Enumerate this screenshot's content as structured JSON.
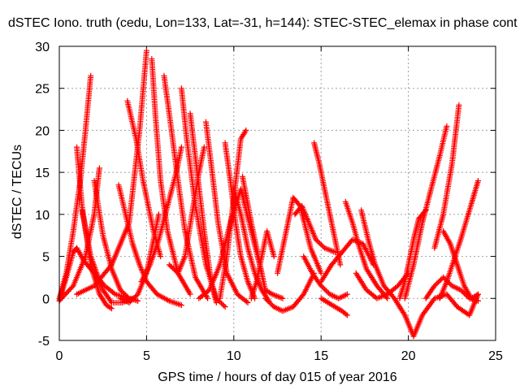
{
  "chart_data": {
    "type": "scatter",
    "title": "dSTEC Iono. truth (cedu, Lon=133, Lat=-31, h=144): STEC-STEC_elemax in phase cont",
    "xlabel": "GPS time / hours of day 015 of year 2016",
    "ylabel": "dSTEC  / TECUs",
    "xlim": [
      0,
      25
    ],
    "ylim": [
      -5,
      30
    ],
    "xticks": [
      "0",
      "5",
      "10",
      "15",
      "20",
      "25"
    ],
    "yticks": [
      "-5",
      "0",
      "5",
      "10",
      "15",
      "20",
      "25",
      "30"
    ],
    "grid": true,
    "marker": "+",
    "color": "#ff0000",
    "series": [
      {
        "x": [
          0.0,
          0.4,
          0.8,
          1.2,
          1.5,
          1.8
        ],
        "y": [
          0.0,
          3.0,
          8.0,
          14.0,
          20.0,
          26.5
        ]
      },
      {
        "x": [
          1.0,
          1.3,
          1.8,
          2.3,
          2.7,
          3.0
        ],
        "y": [
          18.0,
          11.0,
          4.0,
          0.5,
          -0.8,
          -1.2
        ]
      },
      {
        "x": [
          0.0,
          0.4,
          0.8,
          1.0,
          1.4,
          2.0,
          2.6,
          3.2,
          4.0
        ],
        "y": [
          -0.3,
          2.5,
          5.5,
          6.0,
          4.5,
          3.0,
          1.5,
          0.5,
          0.0
        ]
      },
      {
        "x": [
          1.3,
          1.8,
          2.5,
          3.0,
          3.6,
          4.2
        ],
        "y": [
          10.5,
          5.0,
          1.0,
          -0.5,
          -0.5,
          0.0
        ]
      },
      {
        "x": [
          0.0,
          0.8,
          1.5,
          2.0,
          2.3
        ],
        "y": [
          -0.3,
          1.5,
          5.0,
          10.0,
          15.5
        ]
      },
      {
        "x": [
          2.0,
          2.5,
          3.0,
          3.5,
          4.0,
          4.5
        ],
        "y": [
          14.0,
          7.5,
          3.5,
          1.0,
          0.0,
          -0.3
        ]
      },
      {
        "x": [
          3.4,
          3.8,
          4.2,
          4.6,
          5.0,
          5.6,
          6.3,
          7.0
        ],
        "y": [
          13.5,
          10.0,
          6.5,
          4.0,
          2.0,
          0.5,
          -0.3,
          -0.8
        ]
      },
      {
        "x": [
          3.9,
          4.4,
          4.8,
          5.1,
          5.4,
          5.8
        ],
        "y": [
          23.5,
          19.0,
          14.0,
          11.0,
          8.0,
          5.0
        ]
      },
      {
        "x": [
          1.0,
          2.0,
          3.0,
          4.0,
          4.6,
          5.0
        ],
        "y": [
          0.5,
          1.5,
          4.0,
          9.0,
          20.0,
          29.5
        ]
      },
      {
        "x": [
          5.3,
          5.5,
          5.8,
          6.2,
          6.8,
          7.5
        ],
        "y": [
          28.5,
          22.0,
          14.0,
          8.0,
          3.0,
          0.5
        ]
      },
      {
        "x": [
          3.5,
          4.0,
          4.5,
          5.0,
          5.4,
          5.7
        ],
        "y": [
          0.0,
          -0.5,
          0.5,
          3.0,
          7.0,
          10.0
        ]
      },
      {
        "x": [
          6.0,
          6.3,
          6.8,
          7.2,
          7.8,
          8.5
        ],
        "y": [
          26.5,
          22.0,
          14.0,
          8.0,
          2.5,
          0.0
        ]
      },
      {
        "x": [
          4.7,
          5.2,
          5.7,
          6.2,
          6.7,
          7.0
        ],
        "y": [
          2.0,
          4.0,
          7.0,
          11.0,
          15.0,
          18.0
        ]
      },
      {
        "x": [
          7.0,
          7.3,
          7.8,
          8.4,
          9.0,
          9.5
        ],
        "y": [
          25.0,
          19.0,
          11.0,
          4.0,
          0.0,
          -1.0
        ]
      },
      {
        "x": [
          6.3,
          6.8,
          7.2,
          7.6,
          8.0,
          8.3
        ],
        "y": [
          4.0,
          3.0,
          5.0,
          10.0,
          15.0,
          18.0
        ]
      },
      {
        "x": [
          7.5,
          7.9,
          8.3,
          8.7,
          9.0
        ],
        "y": [
          22.0,
          15.0,
          8.0,
          2.0,
          -0.5
        ]
      },
      {
        "x": [
          8.4,
          8.7,
          9.1,
          9.6,
          10.2,
          10.8
        ],
        "y": [
          21.0,
          16.0,
          9.0,
          3.0,
          0.5,
          -0.5
        ]
      },
      {
        "x": [
          9.5,
          9.8,
          10.1,
          10.4,
          10.8,
          11.2
        ],
        "y": [
          18.5,
          14.0,
          9.0,
          5.0,
          2.0,
          0.0
        ]
      },
      {
        "x": [
          9.2,
          9.6,
          10.0,
          10.4,
          10.7
        ],
        "y": [
          0.0,
          5.0,
          12.0,
          19.0,
          20.0
        ]
      },
      {
        "x": [
          10.0,
          10.4,
          10.8,
          11.2,
          11.6,
          12.0
        ],
        "y": [
          13.0,
          10.0,
          6.0,
          3.0,
          1.0,
          -0.3
        ]
      },
      {
        "x": [
          8.0,
          8.6,
          9.2,
          9.8,
          10.4,
          11.0,
          11.6
        ],
        "y": [
          0.0,
          1.0,
          4.0,
          9.0,
          13.0,
          8.0,
          3.0
        ]
      },
      {
        "x": [
          10.5,
          11.0,
          11.5,
          11.8,
          12.2,
          12.8
        ],
        "y": [
          14.5,
          9.0,
          4.0,
          1.0,
          0.5,
          0.0
        ]
      },
      {
        "x": [
          11.0,
          11.3,
          11.6,
          11.9,
          12.3
        ],
        "y": [
          0.0,
          2.0,
          5.0,
          8.0,
          5.0
        ]
      },
      {
        "x": [
          11.8,
          12.3,
          12.8,
          13.4,
          14.0,
          14.6
        ],
        "y": [
          0.0,
          -1.0,
          -1.5,
          -1.0,
          0.5,
          3.0
        ]
      },
      {
        "x": [
          12.5,
          13.0,
          13.4,
          13.8,
          14.4,
          15.0
        ],
        "y": [
          3.0,
          8.0,
          12.0,
          11.0,
          6.0,
          3.0
        ]
      },
      {
        "x": [
          13.5,
          13.9,
          14.3,
          14.7,
          15.2,
          15.8
        ],
        "y": [
          10.0,
          11.0,
          9.0,
          7.0,
          6.0,
          5.5
        ]
      },
      {
        "x": [
          14.6,
          14.9,
          15.2,
          15.5,
          15.8,
          16.1
        ],
        "y": [
          18.5,
          16.0,
          13.0,
          10.0,
          7.0,
          4.0
        ]
      },
      {
        "x": [
          15.0,
          15.4,
          15.8,
          16.2,
          16.5
        ],
        "y": [
          0.0,
          -0.5,
          -1.0,
          -1.5,
          -2.0
        ]
      },
      {
        "x": [
          14.0,
          14.5,
          15.0,
          15.5,
          16.0,
          16.5
        ],
        "y": [
          5.0,
          3.0,
          1.5,
          0.5,
          0.0,
          0.5
        ]
      },
      {
        "x": [
          15.0,
          15.6,
          16.2,
          16.8,
          17.4,
          18.0
        ],
        "y": [
          2.0,
          4.0,
          5.5,
          7.0,
          6.5,
          4.0
        ]
      },
      {
        "x": [
          16.4,
          16.8,
          17.2,
          17.6,
          18.2,
          18.8
        ],
        "y": [
          11.5,
          9.0,
          6.0,
          3.5,
          1.5,
          0.0
        ]
      },
      {
        "x": [
          17.3,
          17.7,
          18.1,
          18.6,
          19.2,
          19.8,
          20.3
        ],
        "y": [
          10.5,
          7.0,
          4.0,
          1.5,
          0.0,
          -2.0,
          -4.5
        ]
      },
      {
        "x": [
          17.0,
          17.6,
          18.2,
          18.8,
          19.4,
          20.0
        ],
        "y": [
          3.0,
          1.0,
          0.0,
          0.5,
          1.5,
          3.0
        ]
      },
      {
        "x": [
          19.5,
          19.8,
          20.0,
          20.3,
          20.6,
          21.0
        ],
        "y": [
          0.0,
          2.0,
          4.0,
          7.0,
          9.5,
          10.5
        ]
      },
      {
        "x": [
          20.3,
          20.8,
          21.5,
          22.2,
          22.8,
          23.5,
          24.0
        ],
        "y": [
          -4.5,
          -2.0,
          0.0,
          0.5,
          -1.0,
          -2.0,
          0.5
        ]
      },
      {
        "x": [
          19.8,
          20.3,
          20.8,
          21.3,
          21.8,
          22.2
        ],
        "y": [
          0.0,
          4.0,
          9.0,
          13.0,
          17.0,
          20.5
        ]
      },
      {
        "x": [
          21.0,
          21.5,
          22.0,
          22.5,
          23.0,
          23.5,
          24.0
        ],
        "y": [
          0.0,
          1.5,
          2.5,
          1.5,
          1.0,
          0.0,
          -0.3
        ]
      },
      {
        "x": [
          22.0,
          22.4,
          22.8,
          23.2,
          23.6,
          24.0
        ],
        "y": [
          8.0,
          6.5,
          4.0,
          1.5,
          0.0,
          0.5
        ]
      },
      {
        "x": [
          21.8,
          22.2,
          22.6,
          23.0,
          23.5,
          24.0
        ],
        "y": [
          0.0,
          2.0,
          4.5,
          7.0,
          10.5,
          14.0
        ]
      },
      {
        "x": [
          21.5,
          22.0,
          22.5,
          22.9
        ],
        "y": [
          6.0,
          10.0,
          16.0,
          23.0
        ]
      }
    ]
  }
}
